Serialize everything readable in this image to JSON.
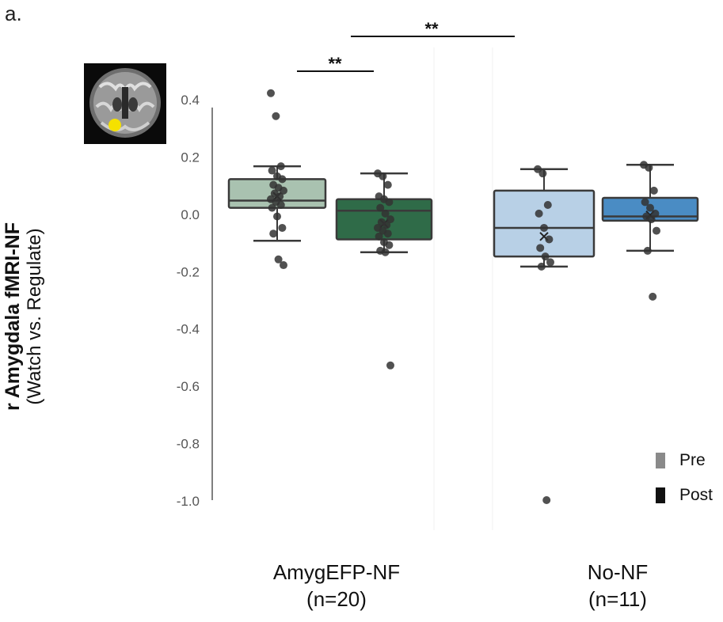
{
  "panel_label": "a.",
  "y_title": {
    "bold": "r Amygdala fMRI-NF",
    "paren": "(Watch vs. Regulate)"
  },
  "groups": [
    {
      "name": "AmygEFP-NF",
      "n": "(n=20)"
    },
    {
      "name": "No-NF",
      "n": "(n=11)"
    }
  ],
  "legend": [
    {
      "label": "Pre",
      "color": "#8a8a8a"
    },
    {
      "label": "Post",
      "color": "#111111"
    }
  ],
  "brain_icon": "brain-mri-coronal-slice",
  "colors": {
    "amyg_pre": "#a9c2b0",
    "amyg_post": "#2f6b48",
    "nonf_pre": "#b8d0e6",
    "nonf_post": "#4a8cc4",
    "box_edge": "#3a3a3a",
    "point": "#333333",
    "roi": "#f5e100"
  },
  "chart_data": {
    "type": "box",
    "ylim": [
      -1.0,
      0.4
    ],
    "yticks": [
      "0.4",
      "0.2",
      "0.0",
      "-0.2",
      "-0.4",
      "-0.6",
      "-0.8",
      "-1.0"
    ],
    "ytick_values": [
      0.4,
      0.2,
      0.0,
      -0.2,
      -0.4,
      -0.6,
      -0.8,
      -1.0
    ],
    "significance": [
      {
        "label": "**",
        "between": [
          "AmygEFP-NF Pre",
          "AmygEFP-NF Post"
        ]
      },
      {
        "label": "**",
        "between": [
          "AmygEFP-NF Post",
          "No-NF Pre"
        ]
      }
    ],
    "boxes": [
      {
        "group": "AmygEFP-NF",
        "phase": "Pre",
        "q1": 0.02,
        "median": 0.045,
        "q3": 0.12,
        "whisker_low": -0.095,
        "whisker_high": 0.165,
        "mean": 0.06,
        "points": [
          0.42,
          0.34,
          0.165,
          0.15,
          0.13,
          0.12,
          0.1,
          0.09,
          0.08,
          0.07,
          0.06,
          0.05,
          0.04,
          0.03,
          0.02,
          -0.01,
          -0.05,
          -0.07,
          -0.16,
          -0.18
        ]
      },
      {
        "group": "AmygEFP-NF",
        "phase": "Post",
        "q1": -0.09,
        "median": 0.01,
        "q3": 0.05,
        "whisker_low": -0.135,
        "whisker_high": 0.14,
        "mean": -0.035,
        "points": [
          0.14,
          0.13,
          0.1,
          0.06,
          0.05,
          0.04,
          0.02,
          0.0,
          -0.02,
          -0.03,
          -0.04,
          -0.05,
          -0.06,
          -0.07,
          -0.08,
          -0.1,
          -0.11,
          -0.13,
          -0.135,
          -0.53
        ]
      },
      {
        "group": "No-NF",
        "phase": "Pre",
        "q1": -0.15,
        "median": -0.05,
        "q3": 0.08,
        "whisker_low": -0.185,
        "whisker_high": 0.155,
        "mean": -0.08,
        "points": [
          0.155,
          0.14,
          0.03,
          0.0,
          -0.05,
          -0.09,
          -0.12,
          -0.15,
          -0.17,
          -0.185,
          -1.0
        ]
      },
      {
        "group": "No-NF",
        "phase": "Post",
        "q1": -0.025,
        "median": -0.01,
        "q3": 0.055,
        "whisker_low": -0.13,
        "whisker_high": 0.17,
        "mean": -0.005,
        "points": [
          0.17,
          0.16,
          0.08,
          0.04,
          0.02,
          0.0,
          -0.01,
          -0.02,
          -0.06,
          -0.13,
          -0.29
        ]
      }
    ]
  }
}
